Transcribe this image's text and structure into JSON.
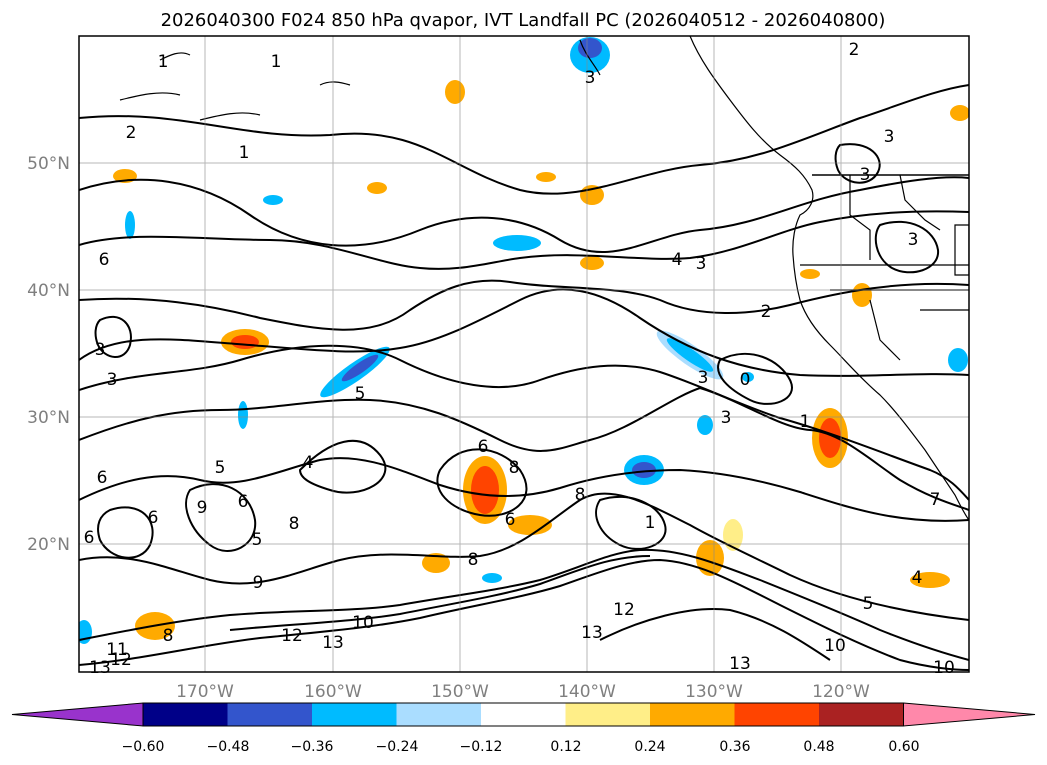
{
  "title": "2026040300 F024 850 hPa qvapor, IVT Landfall PC (2026040512 - 2026040800)",
  "lat_labels": [
    "50°N",
    "40°N",
    "30°N",
    "20°N"
  ],
  "lon_labels": [
    "170°W",
    "160°W",
    "150°W",
    "140°W",
    "130°W",
    "120°W"
  ],
  "colorbar": {
    "ticks": [
      "−0.60",
      "−0.48",
      "−0.36",
      "−0.24",
      "−0.12",
      "0.12",
      "0.24",
      "0.36",
      "0.48",
      "0.60"
    ],
    "colors": [
      "#9933cc",
      "#000088",
      "#3355cc",
      "#00bbff",
      "#aaddff",
      "#ffffff",
      "#ffee88",
      "#ffaa00",
      "#ff4400",
      "#aa2222",
      "#ff88aa"
    ]
  },
  "contour_labels": [
    "1",
    "1",
    "2",
    "2",
    "3",
    "1",
    "3",
    "3",
    "4",
    "3",
    "6",
    "2",
    "3",
    "3",
    "3",
    "3",
    "5",
    "0",
    "3",
    "1",
    "6",
    "6",
    "4",
    "5",
    "6",
    "6",
    "8",
    "9",
    "6",
    "5",
    "8",
    "8",
    "9",
    "6",
    "8",
    "10",
    "11",
    "12",
    "13",
    "13",
    "12",
    "13",
    "10",
    "4",
    "5",
    "13",
    "10",
    "7",
    "8",
    "1",
    "12"
  ]
}
